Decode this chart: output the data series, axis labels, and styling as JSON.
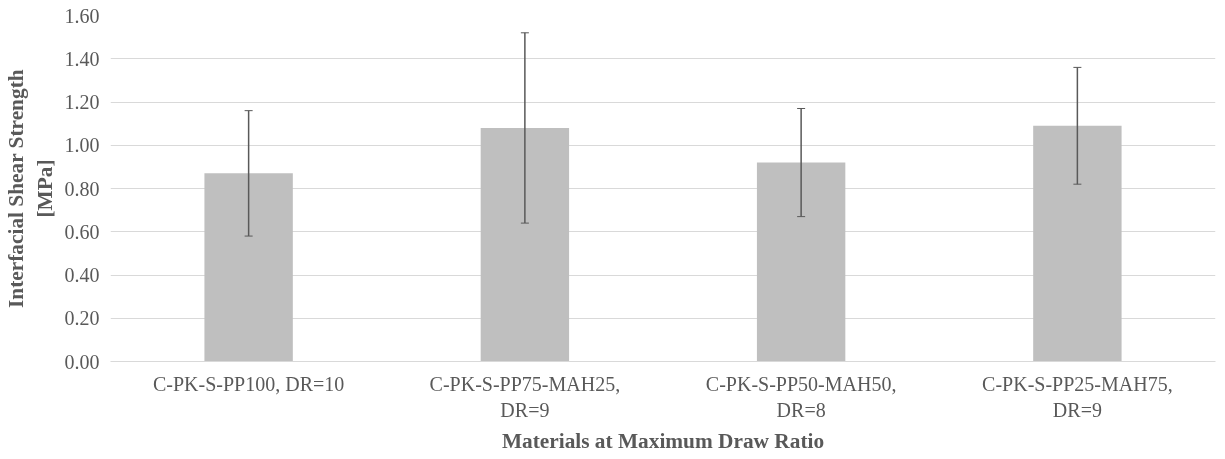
{
  "chart_data": {
    "type": "bar",
    "xlabel": "Materials at Maximum Draw Ratio",
    "ylabel": "Interfacial Shear Strength\n[MPa]",
    "categories": [
      "C-PK-S-PP100, DR=10",
      "C-PK-S-PP75-MAH25,\nDR=9",
      "C-PK-S-PP50-MAH50,\nDR=8",
      "C-PK-S-PP25-MAH75,\nDR=9"
    ],
    "values": [
      0.87,
      1.08,
      0.92,
      1.09
    ],
    "errors": [
      0.29,
      0.44,
      0.25,
      0.27
    ],
    "color": "#bfbfbf",
    "ylim": [
      0,
      1.6
    ],
    "yticks": [
      {
        "value": 0,
        "label": "0.00"
      },
      {
        "value": 0.2,
        "label": "0.20"
      },
      {
        "value": 0.4,
        "label": "0.40"
      },
      {
        "value": 0.6,
        "label": "0.60"
      },
      {
        "value": 0.8,
        "label": "0.80"
      },
      {
        "value": 1.0,
        "label": "1.00"
      },
      {
        "value": 1.2,
        "label": "1.20"
      },
      {
        "value": 1.4,
        "label": "1.40"
      },
      {
        "value": 1.6,
        "label": "1.60"
      }
    ],
    "grid": "y"
  }
}
